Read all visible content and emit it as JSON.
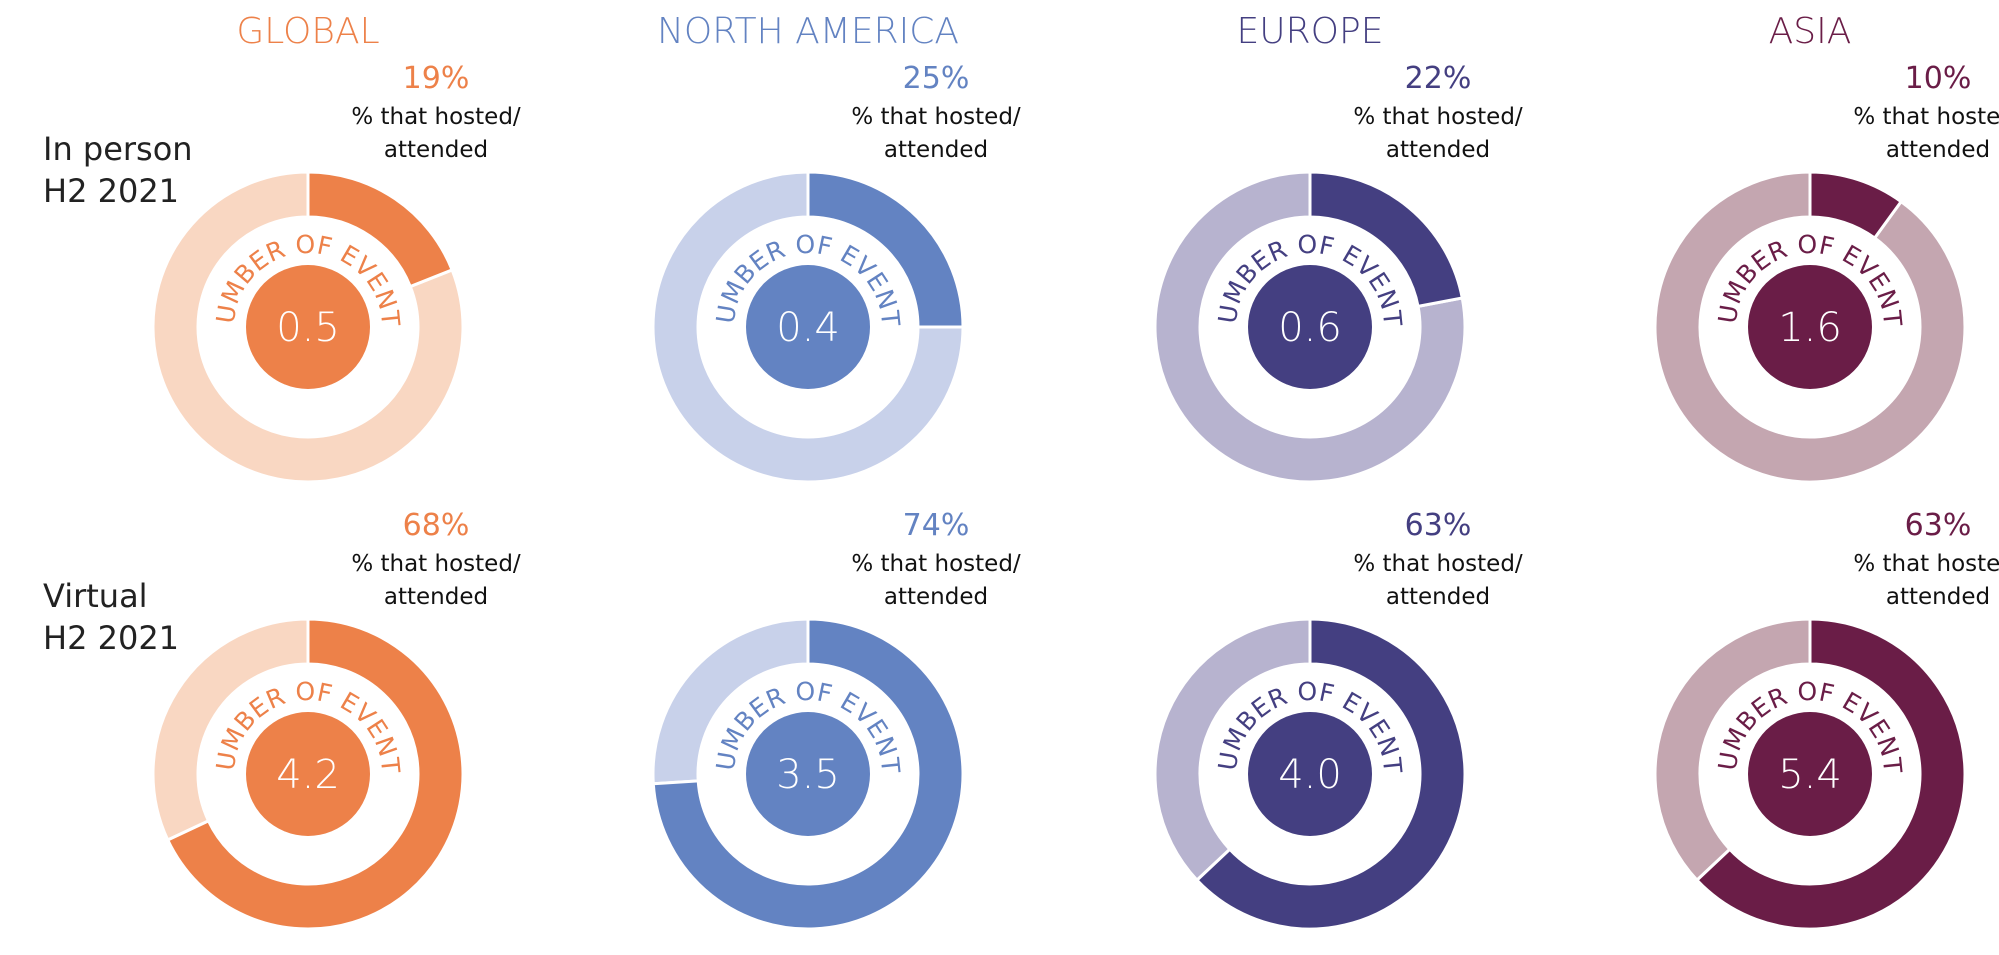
{
  "chart_data": {
    "type": "pie",
    "center_label": "NUMBER OF EVENTS",
    "share_label_line1": "% that hosted/",
    "share_label_line2": "attended",
    "regions": [
      {
        "name": "GLOBAL",
        "color": "#ed8149",
        "light": "#f9d7c2"
      },
      {
        "name": "NORTH AMERICA",
        "color": "#6383c2",
        "light": "#c8d1ea"
      },
      {
        "name": "EUROPE",
        "color": "#443f81",
        "light": "#b7b3cf"
      },
      {
        "name": "ASIA",
        "color": "#6a1d47",
        "light": "#c4a6b0"
      }
    ],
    "rows": [
      {
        "label_line1": "In person",
        "label_line2": "H2 2021",
        "values": [
          {
            "pct": 19,
            "pct_label": "19%",
            "events": "0.5"
          },
          {
            "pct": 25,
            "pct_label": "25%",
            "events": "0.4"
          },
          {
            "pct": 22,
            "pct_label": "22%",
            "events": "0.6"
          },
          {
            "pct": 10,
            "pct_label": "10%",
            "events": "1.6"
          }
        ]
      },
      {
        "label_line1": "Virtual",
        "label_line2": "H2 2021",
        "values": [
          {
            "pct": 68,
            "pct_label": "68%",
            "events": "4.2"
          },
          {
            "pct": 74,
            "pct_label": "74%",
            "events": "3.5"
          },
          {
            "pct": 63,
            "pct_label": "63%",
            "events": "4.0"
          },
          {
            "pct": 63,
            "pct_label": "63%",
            "events": "5.4"
          }
        ]
      }
    ]
  }
}
